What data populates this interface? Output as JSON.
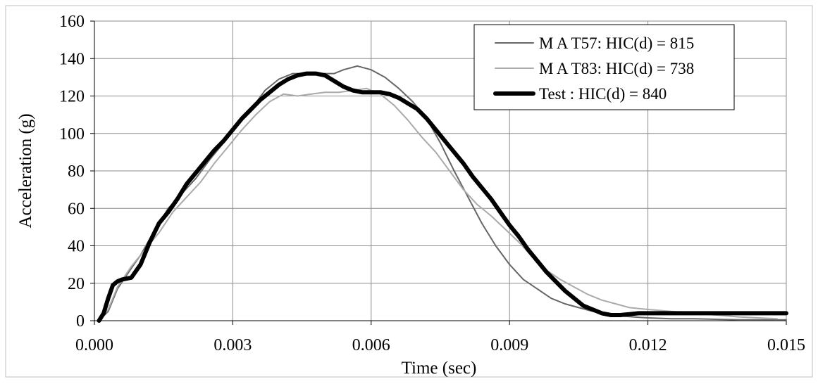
{
  "chart_data": {
    "type": "line",
    "title": "",
    "xlabel": "Time (sec)",
    "ylabel": "Acceleration (g)",
    "xlim": [
      0,
      0.015
    ],
    "ylim": [
      0,
      160
    ],
    "x_ticks": [
      "0.000",
      "0.003",
      "0.006",
      "0.009",
      "0.012",
      "0.015"
    ],
    "y_ticks": [
      "0",
      "20",
      "40",
      "60",
      "80",
      "100",
      "120",
      "140",
      "160"
    ],
    "grid": true,
    "legend_position": "top-right",
    "series": [
      {
        "name": "M A T57: HIC(d) = 815",
        "color": "#666666",
        "points": [
          [
            0.0001,
            0
          ],
          [
            0.0003,
            5
          ],
          [
            0.0005,
            17
          ],
          [
            0.0008,
            28
          ],
          [
            0.001,
            35
          ],
          [
            0.0013,
            48
          ],
          [
            0.0016,
            60
          ],
          [
            0.0019,
            68
          ],
          [
            0.0022,
            76
          ],
          [
            0.0025,
            86
          ],
          [
            0.0028,
            95
          ],
          [
            0.0031,
            104
          ],
          [
            0.0034,
            113
          ],
          [
            0.0037,
            123
          ],
          [
            0.004,
            129
          ],
          [
            0.0043,
            132
          ],
          [
            0.0046,
            132
          ],
          [
            0.0049,
            132
          ],
          [
            0.0052,
            132
          ],
          [
            0.0054,
            134
          ],
          [
            0.0057,
            136
          ],
          [
            0.006,
            134
          ],
          [
            0.0063,
            130
          ],
          [
            0.0066,
            124
          ],
          [
            0.0069,
            117
          ],
          [
            0.0072,
            108
          ],
          [
            0.0075,
            95
          ],
          [
            0.0078,
            80
          ],
          [
            0.0081,
            66
          ],
          [
            0.0084,
            52
          ],
          [
            0.0087,
            40
          ],
          [
            0.009,
            30
          ],
          [
            0.0093,
            22
          ],
          [
            0.0096,
            17
          ],
          [
            0.0099,
            12
          ],
          [
            0.0102,
            9
          ],
          [
            0.0105,
            7
          ],
          [
            0.0108,
            5
          ],
          [
            0.0111,
            3.5
          ],
          [
            0.0114,
            2.5
          ],
          [
            0.0117,
            2
          ],
          [
            0.012,
            1.5
          ],
          [
            0.0125,
            1
          ],
          [
            0.013,
            1
          ],
          [
            0.014,
            0.5
          ],
          [
            0.015,
            0.5
          ]
        ]
      },
      {
        "name": "M A T83: HIC(d) = 738",
        "color": "#aaaaaa",
        "points": [
          [
            0.0001,
            0
          ],
          [
            0.0003,
            6
          ],
          [
            0.0005,
            18
          ],
          [
            0.0008,
            29
          ],
          [
            0.0011,
            38
          ],
          [
            0.0014,
            47
          ],
          [
            0.0017,
            58
          ],
          [
            0.002,
            66
          ],
          [
            0.0023,
            74
          ],
          [
            0.0026,
            84
          ],
          [
            0.0029,
            93
          ],
          [
            0.0032,
            102
          ],
          [
            0.0035,
            110
          ],
          [
            0.0038,
            117
          ],
          [
            0.0041,
            121
          ],
          [
            0.0044,
            120
          ],
          [
            0.0047,
            121
          ],
          [
            0.005,
            122
          ],
          [
            0.0053,
            122
          ],
          [
            0.0056,
            123
          ],
          [
            0.0059,
            124
          ],
          [
            0.0062,
            121
          ],
          [
            0.0065,
            115
          ],
          [
            0.0068,
            107
          ],
          [
            0.0071,
            98
          ],
          [
            0.0074,
            90
          ],
          [
            0.0077,
            80
          ],
          [
            0.008,
            70
          ],
          [
            0.0083,
            62
          ],
          [
            0.0086,
            56
          ],
          [
            0.0089,
            49
          ],
          [
            0.0092,
            42
          ],
          [
            0.0095,
            34
          ],
          [
            0.0098,
            27
          ],
          [
            0.0101,
            22
          ],
          [
            0.0104,
            18
          ],
          [
            0.0107,
            14
          ],
          [
            0.011,
            11
          ],
          [
            0.0113,
            9
          ],
          [
            0.0116,
            7
          ],
          [
            0.012,
            6
          ],
          [
            0.0125,
            5
          ],
          [
            0.013,
            4
          ],
          [
            0.014,
            2
          ],
          [
            0.0148,
            1
          ]
        ]
      },
      {
        "name": "Test : HIC(d) = 840",
        "color": "#000000",
        "points": [
          [
            0.0001,
            0
          ],
          [
            0.0002,
            4
          ],
          [
            0.0003,
            12
          ],
          [
            0.0004,
            19
          ],
          [
            0.0005,
            21
          ],
          [
            0.0006,
            22
          ],
          [
            0.0008,
            23
          ],
          [
            0.001,
            30
          ],
          [
            0.0012,
            42
          ],
          [
            0.0014,
            52
          ],
          [
            0.0016,
            58
          ],
          [
            0.0018,
            65
          ],
          [
            0.002,
            73
          ],
          [
            0.0022,
            79
          ],
          [
            0.0024,
            85
          ],
          [
            0.0026,
            91
          ],
          [
            0.0028,
            96
          ],
          [
            0.003,
            102
          ],
          [
            0.0032,
            108
          ],
          [
            0.0034,
            113
          ],
          [
            0.0036,
            118
          ],
          [
            0.0038,
            122
          ],
          [
            0.004,
            126
          ],
          [
            0.0042,
            129
          ],
          [
            0.0044,
            131
          ],
          [
            0.0046,
            132
          ],
          [
            0.0048,
            132
          ],
          [
            0.005,
            131
          ],
          [
            0.0052,
            128
          ],
          [
            0.0054,
            125
          ],
          [
            0.0056,
            123
          ],
          [
            0.0058,
            122
          ],
          [
            0.006,
            122
          ],
          [
            0.0062,
            122
          ],
          [
            0.0064,
            121
          ],
          [
            0.0066,
            119
          ],
          [
            0.0068,
            116
          ],
          [
            0.007,
            113
          ],
          [
            0.0072,
            108
          ],
          [
            0.0074,
            102
          ],
          [
            0.0076,
            96
          ],
          [
            0.0078,
            90
          ],
          [
            0.008,
            84
          ],
          [
            0.0082,
            77
          ],
          [
            0.0084,
            71
          ],
          [
            0.0086,
            65
          ],
          [
            0.0088,
            58
          ],
          [
            0.009,
            51
          ],
          [
            0.0092,
            45
          ],
          [
            0.0094,
            38
          ],
          [
            0.0096,
            32
          ],
          [
            0.0098,
            26
          ],
          [
            0.01,
            21
          ],
          [
            0.0102,
            16
          ],
          [
            0.0104,
            12
          ],
          [
            0.0106,
            8
          ],
          [
            0.0108,
            6
          ],
          [
            0.011,
            4
          ],
          [
            0.0112,
            3
          ],
          [
            0.0114,
            3
          ],
          [
            0.0116,
            3.5
          ],
          [
            0.0118,
            4
          ],
          [
            0.012,
            4
          ],
          [
            0.013,
            4
          ],
          [
            0.014,
            4
          ],
          [
            0.015,
            4
          ]
        ]
      }
    ]
  }
}
